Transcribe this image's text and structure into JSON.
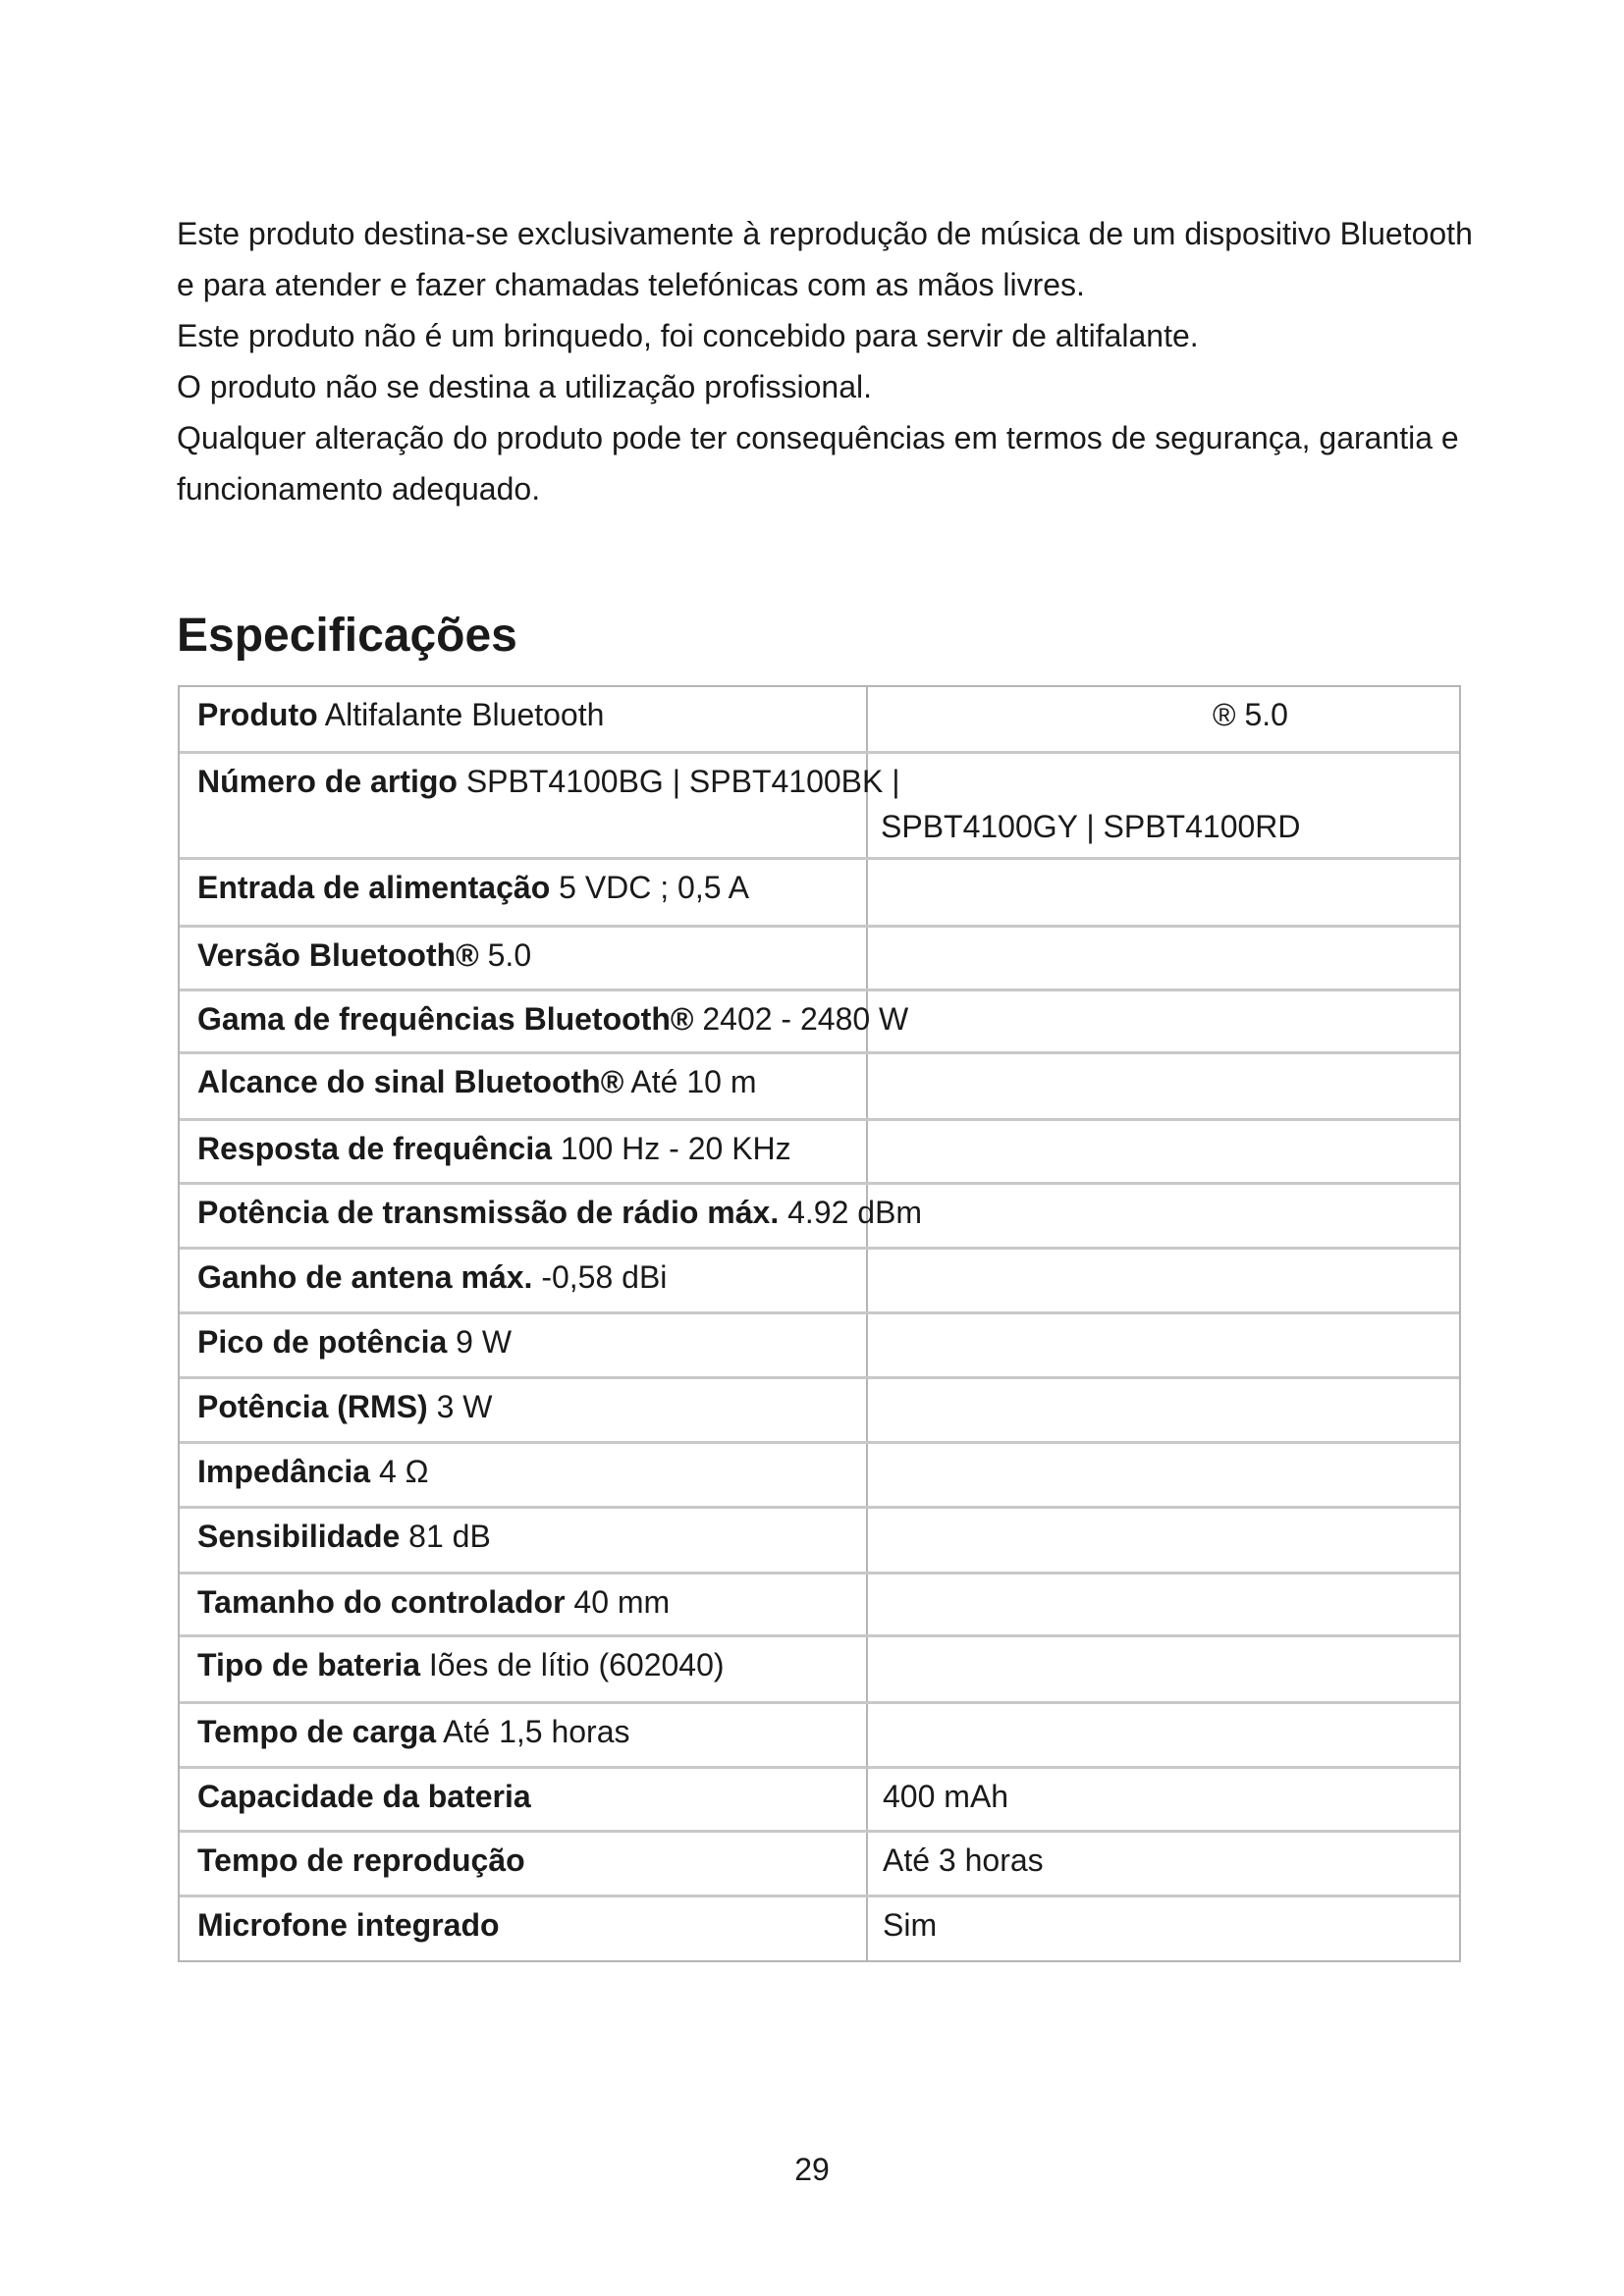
{
  "intro": [
    "Este produto destina-se exclusivamente à reprodução de música de um dispositivo Bluetooth e para atender e fazer chamadas telefónicas com as mãos livres.",
    "Este produto não é um brinquedo, foi concebido para servir de altifalante.",
    "O produto não se destina a utilização profissional.",
    "Qualquer alteração do produto pode ter consequências em termos de segurança, garantia e funcionamento adequado."
  ],
  "heading": "Especificações",
  "specs": [
    {
      "label": "Produto",
      "value": "Altifalante Bluetooth",
      "right": "® 5.0"
    },
    {
      "label": "Número de artigo",
      "value": "SPBT4100BG | SPBT4100BK |",
      "right2": "SPBT4100GY | SPBT4100RD"
    },
    {
      "label": "Entrada de alimentação",
      "value": "5 VDC ; 0,5 A"
    },
    {
      "label": "Versão Bluetooth®",
      "value": "5.0"
    },
    {
      "label": "Gama de frequências Bluetooth®",
      "value": "2402 - 2480 W"
    },
    {
      "label": "Alcance do sinal Bluetooth®",
      "value": "Até 10 m"
    },
    {
      "label": "Resposta de frequência",
      "value": "100 Hz - 20 KHz"
    },
    {
      "label": "Potência de transmissão de rádio máx.",
      "value": "4.92 dBm"
    },
    {
      "label": "Ganho de antena máx.",
      "value": "-0,58 dBi"
    },
    {
      "label": "Pico de potência",
      "value": "9 W"
    },
    {
      "label": "Potência (RMS)",
      "value": "3 W"
    },
    {
      "label": "Impedância",
      "value": "4 Ω"
    },
    {
      "label": "Sensibilidade",
      "value": "81 dB"
    },
    {
      "label": "Tamanho do controlador",
      "value": "40 mm"
    },
    {
      "label": "Tipo de bateria",
      "value": "Iões de lítio (602040)"
    },
    {
      "label": "Tempo de carga",
      "value": "Até 1,5 horas"
    },
    {
      "label": "Capacidade da bateria",
      "right": "400 mAh"
    },
    {
      "label": "Tempo de reprodução",
      "right": "Até 3 horas"
    },
    {
      "label": "Microfone integrado",
      "right": "Sim"
    }
  ],
  "page_number": "29"
}
